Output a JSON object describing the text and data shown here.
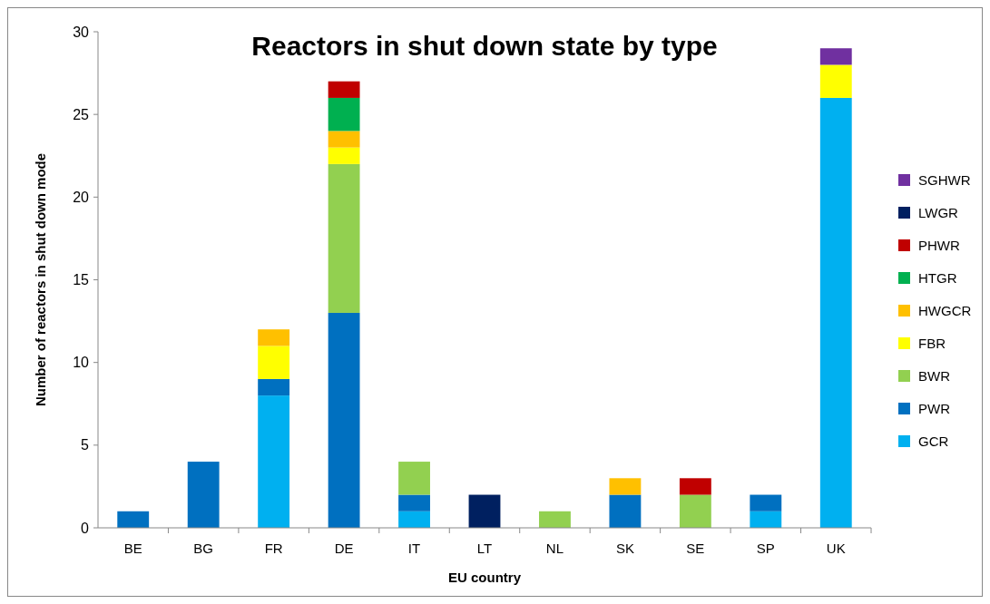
{
  "chart_data": {
    "type": "bar",
    "title": "Reactors in shut down state by type",
    "xlabel": "EU country",
    "ylabel": "Number of reactors in shut down mode",
    "categories": [
      "BE",
      "BG",
      "FR",
      "DE",
      "IT",
      "LT",
      "NL",
      "SK",
      "SE",
      "SP",
      "UK"
    ],
    "stacked": true,
    "ylim": [
      0,
      30
    ],
    "yticks": [
      0,
      5,
      10,
      15,
      20,
      25,
      30
    ],
    "grid": false,
    "legend": "right",
    "series": [
      {
        "name": "GCR",
        "color": "#00b0f0",
        "values": [
          0,
          0,
          8,
          0,
          1,
          0,
          0,
          0,
          0,
          1,
          26
        ]
      },
      {
        "name": "PWR",
        "color": "#0070c0",
        "values": [
          1,
          4,
          1,
          13,
          1,
          0,
          0,
          2,
          0,
          1,
          0
        ]
      },
      {
        "name": "BWR",
        "color": "#92d050",
        "values": [
          0,
          0,
          0,
          9,
          2,
          0,
          1,
          0,
          2,
          0,
          0
        ]
      },
      {
        "name": "FBR",
        "color": "#ffff00",
        "values": [
          0,
          0,
          2,
          1,
          0,
          0,
          0,
          0,
          0,
          0,
          2
        ]
      },
      {
        "name": "HWGCR",
        "color": "#ffc000",
        "values": [
          0,
          0,
          1,
          1,
          0,
          0,
          0,
          1,
          0,
          0,
          0
        ]
      },
      {
        "name": "HTGR",
        "color": "#00b050",
        "values": [
          0,
          0,
          0,
          2,
          0,
          0,
          0,
          0,
          0,
          0,
          0
        ]
      },
      {
        "name": "PHWR",
        "color": "#c00000",
        "values": [
          0,
          0,
          0,
          1,
          0,
          0,
          0,
          0,
          1,
          0,
          0
        ]
      },
      {
        "name": "LWGR",
        "color": "#002060",
        "values": [
          0,
          0,
          0,
          0,
          0,
          2,
          0,
          0,
          0,
          0,
          0
        ]
      },
      {
        "name": "SGHWR",
        "color": "#7030a0",
        "values": [
          0,
          0,
          0,
          0,
          0,
          0,
          0,
          0,
          0,
          0,
          1
        ]
      }
    ]
  }
}
